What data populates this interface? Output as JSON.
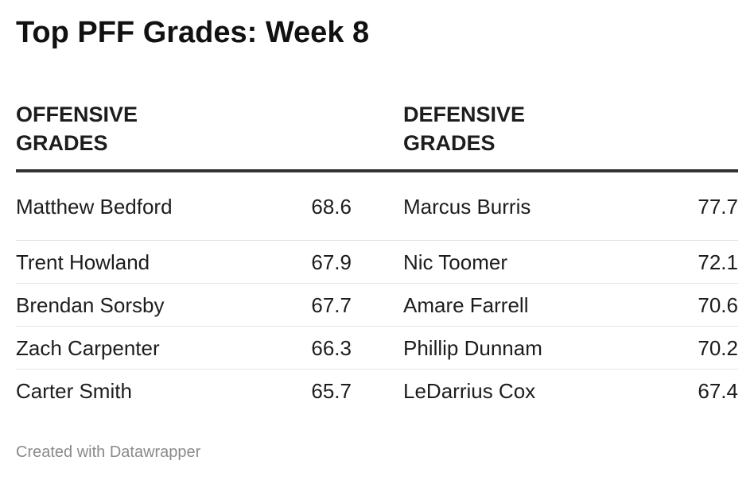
{
  "title": "Top PFF Grades: Week 8",
  "headers": {
    "offensive": "OFFENSIVE GRADES",
    "defensive": "DEFENSIVE GRADES"
  },
  "rows": [
    {
      "off_name": "Matthew Bedford",
      "off_grade": "68.6",
      "def_name": "Marcus Burris",
      "def_grade": "77.7"
    },
    {
      "off_name": "Trent Howland",
      "off_grade": "67.9",
      "def_name": "Nic Toomer",
      "def_grade": "72.1"
    },
    {
      "off_name": "Brendan Sorsby",
      "off_grade": "67.7",
      "def_name": "Amare Farrell",
      "def_grade": "70.6"
    },
    {
      "off_name": "Zach Carpenter",
      "off_grade": "66.3",
      "def_name": "Phillip Dunnam",
      "def_grade": "70.2"
    },
    {
      "off_name": "Carter Smith",
      "off_grade": "65.7",
      "def_name": "LeDarrius Cox",
      "def_grade": "67.4"
    }
  ],
  "footer": "Created with Datawrapper"
}
